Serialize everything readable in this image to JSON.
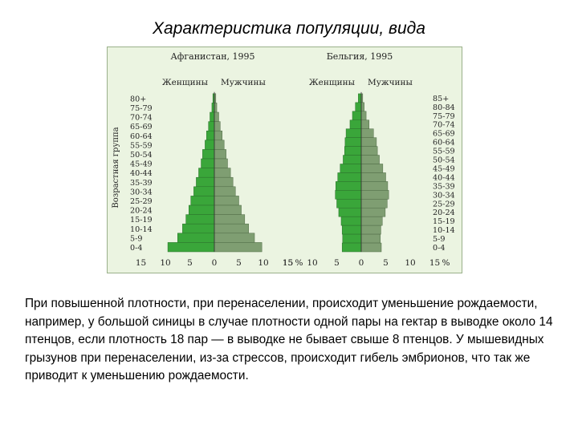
{
  "title": "Характеристика популяции, вида",
  "body_text": "При повышенной плотности, при перенаселении, происходит уменьшение рождаемости, например, у большой синицы в случае плотности одной пары на гектар в выводке около 14 птенцов, если плотность 18 пар — в выводке не бывает свыше 8 птенцов. У мышевидных грызунов при перенаселении, из-за стрессов, происходит гибель эмбрионов, что так же приводит к уменьшению рождаемости.",
  "colors": {
    "female": "#3aa63a",
    "male": "#7f9e72",
    "panel_bg": "#ebf4e1"
  },
  "chart_data": [
    {
      "type": "bar",
      "orientation": "horizontal-population-pyramid",
      "title": "Афганистан, 1995",
      "ylabel": "Возрастная группа",
      "xlabel": "%",
      "x_ticks": [
        "15",
        "10",
        "5",
        "0",
        "5",
        "10",
        "15",
        "%"
      ],
      "xlim": [
        -15,
        15
      ],
      "legend": [
        "Женщины",
        "Мужчины"
      ],
      "categories": [
        "80+",
        "75-79",
        "70-74",
        "65-69",
        "60-64",
        "55-59",
        "50-54",
        "45-49",
        "40-44",
        "35-39",
        "30-34",
        "25-29",
        "20-24",
        "15-19",
        "10-14",
        "5-9",
        "0-4"
      ],
      "series": [
        {
          "name": "Женщины",
          "values": [
            0.3,
            0.5,
            0.9,
            1.2,
            1.6,
            1.9,
            2.4,
            2.7,
            3.2,
            3.7,
            4.2,
            4.8,
            5.2,
            5.8,
            6.5,
            7.5,
            9.5
          ]
        },
        {
          "name": "Мужчины",
          "values": [
            0.3,
            0.5,
            0.9,
            1.2,
            1.6,
            2.0,
            2.4,
            2.7,
            3.3,
            3.8,
            4.3,
            5.0,
            5.5,
            6.2,
            7.0,
            8.2,
            9.7
          ]
        }
      ]
    },
    {
      "type": "bar",
      "orientation": "horizontal-population-pyramid",
      "title": "Бельгия, 1995",
      "xlabel": "%",
      "x_ticks": [
        "15",
        "10",
        "5",
        "0",
        "5",
        "10",
        "15",
        "%"
      ],
      "xlim": [
        -15,
        15
      ],
      "legend": [
        "Женщины",
        "Мужчины"
      ],
      "categories": [
        "85+",
        "80-84",
        "75-79",
        "70-74",
        "65-69",
        "60-64",
        "55-59",
        "50-54",
        "45-49",
        "40-44",
        "35-39",
        "30-34",
        "25-29",
        "20-24",
        "15-19",
        "10-14",
        "5-9",
        "0-4"
      ],
      "series": [
        {
          "name": "Женщины",
          "values": [
            0.6,
            1.2,
            1.8,
            2.3,
            3.1,
            3.3,
            3.4,
            3.7,
            4.3,
            4.8,
            5.2,
            5.3,
            5.0,
            4.6,
            4.1,
            3.9,
            3.8,
            3.9
          ]
        },
        {
          "name": "Мужчины",
          "values": [
            0.3,
            0.6,
            1.0,
            1.6,
            2.5,
            3.1,
            3.3,
            3.7,
            4.4,
            5.0,
            5.4,
            5.6,
            5.3,
            4.9,
            4.3,
            4.0,
            3.9,
            4.1
          ]
        }
      ]
    }
  ]
}
